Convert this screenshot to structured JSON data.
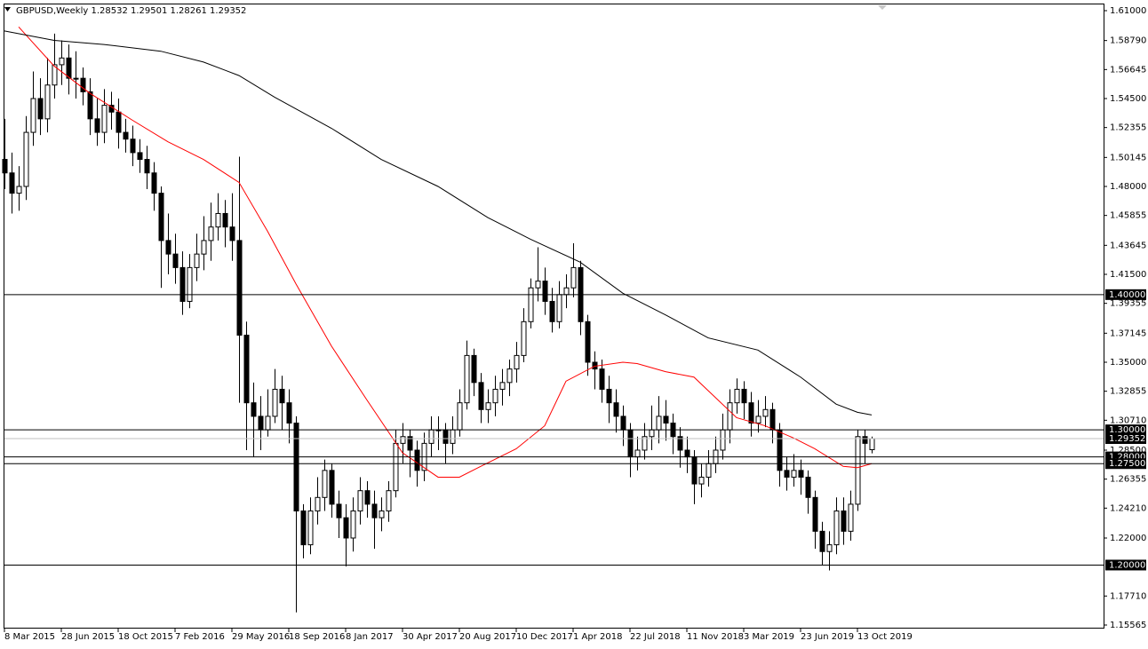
{
  "chart_data": {
    "type": "candlestick",
    "title": "GBPUSD,Weekly  1.28532 1.29501 1.28261 1.29352",
    "up_color": "#ffffff",
    "down_color": "#000000",
    "outline_color": "#000000",
    "ylim": [
      1.15565,
      1.61
    ],
    "yticks": [
      {
        "value": 1.61,
        "label": "1.61000"
      },
      {
        "value": 1.5879,
        "label": "1.58790"
      },
      {
        "value": 1.56645,
        "label": "1.56645"
      },
      {
        "value": 1.545,
        "label": "1.54500"
      },
      {
        "value": 1.52355,
        "label": "1.52355"
      },
      {
        "value": 1.50145,
        "label": "1.50145"
      },
      {
        "value": 1.48,
        "label": "1.48000"
      },
      {
        "value": 1.45855,
        "label": "1.45855"
      },
      {
        "value": 1.43645,
        "label": "1.43645"
      },
      {
        "value": 1.415,
        "label": "1.41500"
      },
      {
        "value": 1.39355,
        "label": "1.39355"
      },
      {
        "value": 1.37145,
        "label": "1.37145"
      },
      {
        "value": 1.35,
        "label": "1.35000"
      },
      {
        "value": 1.32855,
        "label": "1.32855"
      },
      {
        "value": 1.3071,
        "label": "1.30710"
      },
      {
        "value": 1.285,
        "label": "1.28500"
      },
      {
        "value": 1.26355,
        "label": "1.26355"
      },
      {
        "value": 1.2421,
        "label": "1.24210"
      },
      {
        "value": 1.22,
        "label": "1.22000"
      },
      {
        "value": 1.1771,
        "label": "1.17710"
      },
      {
        "value": 1.15565,
        "label": "1.15565"
      }
    ],
    "levels": [
      {
        "value": 1.4,
        "label": "1.40000"
      },
      {
        "value": 1.3,
        "label": "1.30000"
      },
      {
        "value": 1.28,
        "label": "1.28000"
      },
      {
        "value": 1.275,
        "label": "1.27500"
      },
      {
        "value": 1.2,
        "label": "1.20000"
      }
    ],
    "current_price": {
      "value": 1.29352,
      "label": "1.29352",
      "color": "#c0c0c0"
    },
    "x_labels": [
      "8 Mar 2015",
      "28 Jun 2015",
      "18 Oct 2015",
      "7 Feb 2016",
      "29 May 2016",
      "18 Sep 2016",
      "8 Jan 2017",
      "30 Apr 2017",
      "20 Aug 2017",
      "10 Dec 2017",
      "1 Apr 2018",
      "22 Jul 2018",
      "11 Nov 2018",
      "3 Mar 2019",
      "23 Jun 2019",
      "13 Oct 2019"
    ],
    "candles": [
      [
        1.5,
        1.53,
        1.478,
        1.49
      ],
      [
        1.49,
        1.505,
        1.46,
        1.475
      ],
      [
        1.475,
        1.495,
        1.462,
        1.48
      ],
      [
        1.48,
        1.532,
        1.47,
        1.52
      ],
      [
        1.52,
        1.565,
        1.51,
        1.545
      ],
      [
        1.545,
        1.56,
        1.518,
        1.53
      ],
      [
        1.53,
        1.575,
        1.52,
        1.555
      ],
      [
        1.555,
        1.593,
        1.545,
        1.57
      ],
      [
        1.57,
        1.588,
        1.555,
        1.575
      ],
      [
        1.575,
        1.585,
        1.548,
        1.56
      ],
      [
        1.56,
        1.58,
        1.545,
        1.56
      ],
      [
        1.56,
        1.568,
        1.54,
        1.55
      ],
      [
        1.55,
        1.56,
        1.518,
        1.53
      ],
      [
        1.53,
        1.545,
        1.51,
        1.52
      ],
      [
        1.52,
        1.552,
        1.512,
        1.54
      ],
      [
        1.54,
        1.55,
        1.522,
        1.535
      ],
      [
        1.535,
        1.545,
        1.508,
        1.52
      ],
      [
        1.52,
        1.53,
        1.505,
        1.515
      ],
      [
        1.515,
        1.525,
        1.495,
        1.505
      ],
      [
        1.505,
        1.515,
        1.49,
        1.5
      ],
      [
        1.5,
        1.51,
        1.478,
        1.49
      ],
      [
        1.49,
        1.498,
        1.462,
        1.475
      ],
      [
        1.475,
        1.48,
        1.405,
        1.44
      ],
      [
        1.44,
        1.46,
        1.415,
        1.43
      ],
      [
        1.43,
        1.445,
        1.408,
        1.42
      ],
      [
        1.42,
        1.432,
        1.385,
        1.395
      ],
      [
        1.395,
        1.43,
        1.39,
        1.42
      ],
      [
        1.42,
        1.445,
        1.41,
        1.43
      ],
      [
        1.43,
        1.458,
        1.418,
        1.44
      ],
      [
        1.44,
        1.468,
        1.425,
        1.45
      ],
      [
        1.45,
        1.475,
        1.44,
        1.46
      ],
      [
        1.46,
        1.47,
        1.435,
        1.45
      ],
      [
        1.45,
        1.475,
        1.425,
        1.44
      ],
      [
        1.44,
        1.502,
        1.32,
        1.37
      ],
      [
        1.37,
        1.38,
        1.285,
        1.32
      ],
      [
        1.32,
        1.335,
        1.28,
        1.31
      ],
      [
        1.31,
        1.325,
        1.285,
        1.3
      ],
      [
        1.3,
        1.33,
        1.295,
        1.31
      ],
      [
        1.31,
        1.345,
        1.305,
        1.33
      ],
      [
        1.33,
        1.34,
        1.3,
        1.32
      ],
      [
        1.32,
        1.33,
        1.29,
        1.305
      ],
      [
        1.305,
        1.31,
        1.165,
        1.24
      ],
      [
        1.24,
        1.245,
        1.205,
        1.215
      ],
      [
        1.215,
        1.25,
        1.208,
        1.24
      ],
      [
        1.24,
        1.265,
        1.23,
        1.25
      ],
      [
        1.25,
        1.278,
        1.24,
        1.27
      ],
      [
        1.27,
        1.275,
        1.235,
        1.245
      ],
      [
        1.245,
        1.255,
        1.22,
        1.235
      ],
      [
        1.235,
        1.245,
        1.199,
        1.22
      ],
      [
        1.22,
        1.25,
        1.21,
        1.24
      ],
      [
        1.24,
        1.265,
        1.23,
        1.255
      ],
      [
        1.255,
        1.262,
        1.235,
        1.245
      ],
      [
        1.245,
        1.255,
        1.212,
        1.235
      ],
      [
        1.235,
        1.25,
        1.225,
        1.24
      ],
      [
        1.24,
        1.262,
        1.232,
        1.255
      ],
      [
        1.255,
        1.3,
        1.25,
        1.29
      ],
      [
        1.29,
        1.305,
        1.275,
        1.295
      ],
      [
        1.295,
        1.3,
        1.265,
        1.285
      ],
      [
        1.285,
        1.292,
        1.258,
        1.27
      ],
      [
        1.27,
        1.298,
        1.262,
        1.29
      ],
      [
        1.29,
        1.31,
        1.28,
        1.3
      ],
      [
        1.3,
        1.31,
        1.285,
        1.3
      ],
      [
        1.3,
        1.305,
        1.275,
        1.29
      ],
      [
        1.29,
        1.31,
        1.282,
        1.3
      ],
      [
        1.3,
        1.33,
        1.295,
        1.32
      ],
      [
        1.32,
        1.366,
        1.315,
        1.355
      ],
      [
        1.355,
        1.36,
        1.325,
        1.335
      ],
      [
        1.335,
        1.342,
        1.305,
        1.315
      ],
      [
        1.315,
        1.33,
        1.305,
        1.32
      ],
      [
        1.32,
        1.34,
        1.31,
        1.33
      ],
      [
        1.33,
        1.345,
        1.318,
        1.335
      ],
      [
        1.335,
        1.352,
        1.325,
        1.345
      ],
      [
        1.345,
        1.365,
        1.335,
        1.355
      ],
      [
        1.355,
        1.39,
        1.35,
        1.38
      ],
      [
        1.38,
        1.412,
        1.375,
        1.405
      ],
      [
        1.405,
        1.435,
        1.395,
        1.41
      ],
      [
        1.41,
        1.42,
        1.385,
        1.395
      ],
      [
        1.395,
        1.405,
        1.372,
        1.38
      ],
      [
        1.38,
        1.41,
        1.375,
        1.4
      ],
      [
        1.4,
        1.415,
        1.39,
        1.405
      ],
      [
        1.405,
        1.438,
        1.398,
        1.42
      ],
      [
        1.42,
        1.425,
        1.37,
        1.38
      ],
      [
        1.38,
        1.385,
        1.34,
        1.35
      ],
      [
        1.35,
        1.358,
        1.33,
        1.345
      ],
      [
        1.345,
        1.352,
        1.32,
        1.33
      ],
      [
        1.33,
        1.34,
        1.305,
        1.32
      ],
      [
        1.32,
        1.33,
        1.298,
        1.31
      ],
      [
        1.31,
        1.318,
        1.288,
        1.3
      ],
      [
        1.3,
        1.305,
        1.265,
        1.28
      ],
      [
        1.28,
        1.295,
        1.27,
        1.285
      ],
      [
        1.285,
        1.305,
        1.278,
        1.295
      ],
      [
        1.295,
        1.318,
        1.285,
        1.3
      ],
      [
        1.3,
        1.325,
        1.29,
        1.31
      ],
      [
        1.31,
        1.322,
        1.292,
        1.305
      ],
      [
        1.305,
        1.312,
        1.282,
        1.295
      ],
      [
        1.295,
        1.302,
        1.272,
        1.285
      ],
      [
        1.285,
        1.295,
        1.268,
        1.28
      ],
      [
        1.28,
        1.285,
        1.245,
        1.26
      ],
      [
        1.26,
        1.275,
        1.25,
        1.265
      ],
      [
        1.265,
        1.285,
        1.258,
        1.275
      ],
      [
        1.275,
        1.295,
        1.268,
        1.285
      ],
      [
        1.285,
        1.312,
        1.278,
        1.3
      ],
      [
        1.3,
        1.33,
        1.29,
        1.32
      ],
      [
        1.32,
        1.338,
        1.312,
        1.33
      ],
      [
        1.33,
        1.336,
        1.308,
        1.32
      ],
      [
        1.32,
        1.328,
        1.295,
        1.305
      ],
      [
        1.305,
        1.322,
        1.298,
        1.31
      ],
      [
        1.31,
        1.325,
        1.302,
        1.315
      ],
      [
        1.315,
        1.32,
        1.29,
        1.3
      ],
      [
        1.3,
        1.305,
        1.258,
        1.27
      ],
      [
        1.27,
        1.28,
        1.255,
        1.265
      ],
      [
        1.265,
        1.282,
        1.258,
        1.27
      ],
      [
        1.27,
        1.278,
        1.252,
        1.265
      ],
      [
        1.265,
        1.27,
        1.238,
        1.25
      ],
      [
        1.25,
        1.255,
        1.212,
        1.225
      ],
      [
        1.225,
        1.232,
        1.2,
        1.21
      ],
      [
        1.21,
        1.225,
        1.196,
        1.215
      ],
      [
        1.215,
        1.25,
        1.208,
        1.24
      ],
      [
        1.24,
        1.25,
        1.215,
        1.225
      ],
      [
        1.225,
        1.255,
        1.218,
        1.245
      ],
      [
        1.245,
        1.3,
        1.24,
        1.295
      ],
      [
        1.295,
        1.3,
        1.275,
        1.29
      ],
      [
        1.28532,
        1.29501,
        1.28261,
        1.29352
      ]
    ],
    "series": [
      {
        "color": "#ff0000",
        "x": [
          2,
          7,
          12,
          18,
          23,
          28,
          33,
          37,
          41,
          46,
          51,
          56,
          61,
          64,
          67,
          72,
          76,
          79,
          83,
          87,
          89,
          93,
          97,
          99,
          103,
          107,
          111,
          114,
          118,
          120,
          122
        ],
        "values": [
          1.598,
          1.569,
          1.549,
          1.529,
          1.513,
          1.5,
          1.483,
          1.447,
          1.408,
          1.362,
          1.322,
          1.283,
          1.265,
          1.265,
          1.273,
          1.286,
          1.303,
          1.336,
          1.347,
          1.35,
          1.349,
          1.343,
          1.339,
          1.329,
          1.309,
          1.303,
          1.294,
          1.286,
          1.273,
          1.272,
          1.275
        ]
      },
      {
        "color": "#000000",
        "x": [
          0,
          7,
          14,
          22,
          28,
          33,
          38,
          46,
          53,
          61,
          68,
          74,
          81,
          87,
          93,
          99,
          106,
          112,
          117,
          120,
          122
        ],
        "values": [
          1.595,
          1.588,
          1.585,
          1.58,
          1.572,
          1.562,
          1.546,
          1.523,
          1.5,
          1.48,
          1.457,
          1.441,
          1.424,
          1.401,
          1.385,
          1.368,
          1.359,
          1.339,
          1.319,
          1.313,
          1.311
        ]
      }
    ]
  }
}
